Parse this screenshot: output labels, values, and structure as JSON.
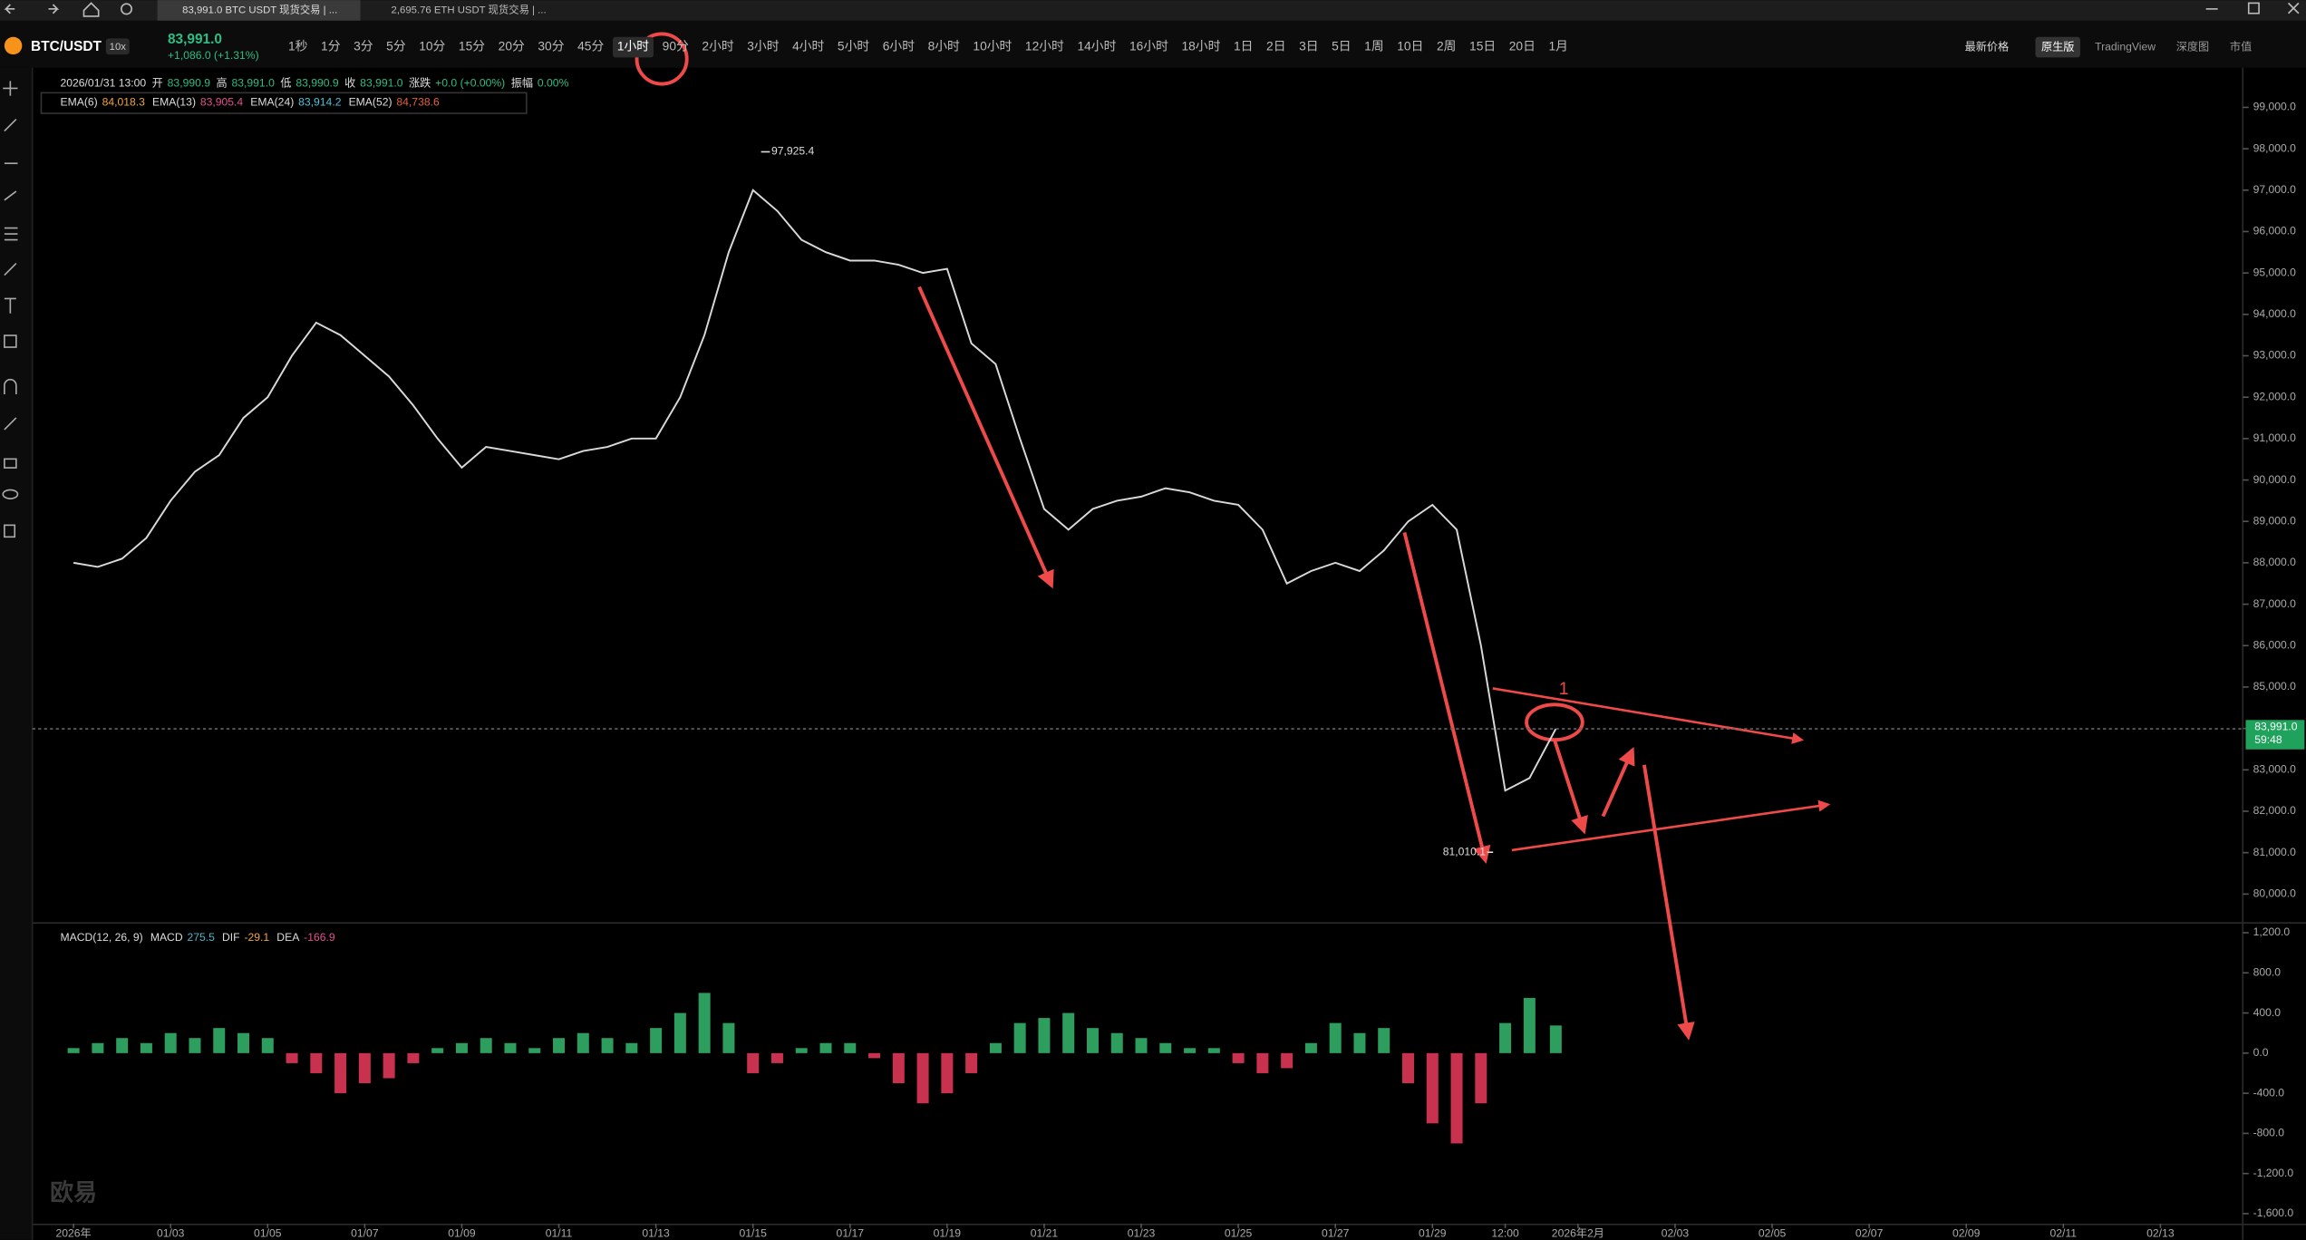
{
  "tabs": [
    "83,991.0 BTC USDT 现货交易 | ...",
    "2,695.76 ETH USDT 现货交易 | ..."
  ],
  "toolbar": {
    "symbol": "BTC/USDT",
    "leverage": "10x",
    "price": "83,991.0",
    "change": "+1,086.0 (+1.31%)",
    "intervals": [
      "1秒",
      "1分",
      "3分",
      "5分",
      "10分",
      "15分",
      "20分",
      "30分",
      "45分",
      "1小时",
      "90分",
      "2小时",
      "3小时",
      "4小时",
      "5小时",
      "6小时",
      "8小时",
      "10小时",
      "12小时",
      "14小时",
      "16小时",
      "18小时",
      "1日",
      "2日",
      "3日",
      "5日",
      "1周",
      "10日",
      "2周",
      "15日",
      "20日",
      "1月"
    ],
    "active_interval": "1小时",
    "price_mode": "最新价格",
    "views": [
      "原生版",
      "TradingView",
      "深度图",
      "市值"
    ]
  },
  "ohlc_line": {
    "time": "2026/01/31 13:00",
    "items": [
      [
        "开",
        "83,990.9"
      ],
      [
        "高",
        "83,991.0"
      ],
      [
        "低",
        "83,990.9"
      ],
      [
        "收",
        "83,991.0"
      ],
      [
        "涨跌",
        "+0.0 (+0.00%)"
      ],
      [
        "振幅",
        "0.00%"
      ]
    ]
  },
  "ema_line": [
    {
      "label": "EMA(6)",
      "value": "84,018.3",
      "color": "#f0a63a"
    },
    {
      "label": "EMA(13)",
      "value": "83,905.4",
      "color": "#e0528f"
    },
    {
      "label": "EMA(24)",
      "value": "83,914.2",
      "color": "#4fc3d9"
    },
    {
      "label": "EMA(52)",
      "value": "84,738.6",
      "color": "#e0633a"
    }
  ],
  "macd_line": {
    "label": "MACD(12, 26, 9)",
    "items": [
      {
        "label": "MACD",
        "value": "275.5",
        "color": "#4fb3c9"
      },
      {
        "label": "DIF",
        "value": "-29.1",
        "color": "#f0a63a"
      },
      {
        "label": "DEA",
        "value": "-166.9",
        "color": "#e0528f"
      }
    ]
  },
  "annotation": "1",
  "watermark": "欧易",
  "chart_data": [
    {
      "type": "line",
      "name": "price",
      "x": [
        "2026-01-01 00:00",
        "2026-01-01 12:00",
        "2026-01-02 00:00",
        "2026-01-02 12:00",
        "2026-01-03 00:00",
        "2026-01-03 12:00",
        "2026-01-04 00:00",
        "2026-01-04 12:00",
        "2026-01-05 00:00",
        "2026-01-05 12:00",
        "2026-01-06 00:00",
        "2026-01-06 12:00",
        "2026-01-07 00:00",
        "2026-01-07 12:00",
        "2026-01-08 00:00",
        "2026-01-08 12:00",
        "2026-01-09 00:00",
        "2026-01-09 12:00",
        "2026-01-10 00:00",
        "2026-01-10 12:00",
        "2026-01-11 00:00",
        "2026-01-11 12:00",
        "2026-01-12 00:00",
        "2026-01-12 12:00",
        "2026-01-13 00:00",
        "2026-01-13 12:00",
        "2026-01-14 00:00",
        "2026-01-14 12:00",
        "2026-01-15 00:00",
        "2026-01-15 12:00",
        "2026-01-16 00:00",
        "2026-01-16 12:00",
        "2026-01-17 00:00",
        "2026-01-17 12:00",
        "2026-01-18 00:00",
        "2026-01-18 12:00",
        "2026-01-19 00:00",
        "2026-01-19 12:00",
        "2026-01-20 00:00",
        "2026-01-20 12:00",
        "2026-01-21 00:00",
        "2026-01-21 12:00",
        "2026-01-22 00:00",
        "2026-01-22 12:00",
        "2026-01-23 00:00",
        "2026-01-23 12:00",
        "2026-01-24 00:00",
        "2026-01-24 12:00",
        "2026-01-25 00:00",
        "2026-01-25 12:00",
        "2026-01-26 00:00",
        "2026-01-26 12:00",
        "2026-01-27 00:00",
        "2026-01-27 12:00",
        "2026-01-28 00:00",
        "2026-01-28 12:00",
        "2026-01-29 00:00",
        "2026-01-29 12:00",
        "2026-01-30 00:00",
        "2026-01-30 12:00",
        "2026-01-31 00:00",
        "2026-01-31 13:00"
      ],
      "values": [
        88000,
        87900,
        88100,
        88600,
        89500,
        90200,
        90600,
        91500,
        92000,
        93000,
        93800,
        93500,
        93000,
        92500,
        91800,
        91000,
        90300,
        90800,
        90700,
        90600,
        90500,
        90700,
        90800,
        91000,
        91000,
        92000,
        93500,
        95500,
        97000,
        96500,
        95800,
        95500,
        95300,
        95300,
        95200,
        95000,
        95100,
        93300,
        92800,
        91000,
        89300,
        88800,
        89300,
        89500,
        89600,
        89800,
        89700,
        89500,
        89400,
        88800,
        87500,
        87800,
        88000,
        87800,
        88300,
        89000,
        89400,
        88800,
        86000,
        82500,
        82800,
        83991
      ],
      "color": "#d9d9d9",
      "xlim": [
        "2026-01-01 00:00",
        "2026-02-14 00:00"
      ],
      "ylim": [
        79320,
        99920
      ],
      "yticks": [
        {
          "value": 80000,
          "label": "80,000.0"
        },
        {
          "value": 81000,
          "label": "81,000.0"
        },
        {
          "value": 82000,
          "label": "82,000.0"
        },
        {
          "value": 83000,
          "label": "83,000.0"
        },
        {
          "value": 84000,
          "label": "84,000.0"
        },
        {
          "value": 85000,
          "label": "85,000.0"
        },
        {
          "value": 86000,
          "label": "86,000.0"
        },
        {
          "value": 87000,
          "label": "87,000.0"
        },
        {
          "value": 88000,
          "label": "88,000.0"
        },
        {
          "value": 89000,
          "label": "89,000.0"
        },
        {
          "value": 90000,
          "label": "90,000.0"
        },
        {
          "value": 91000,
          "label": "91,000.0"
        },
        {
          "value": 92000,
          "label": "92,000.0"
        },
        {
          "value": 93000,
          "label": "93,000.0"
        },
        {
          "value": 94000,
          "label": "94,000.0"
        },
        {
          "value": 95000,
          "label": "95,000.0"
        },
        {
          "value": 96000,
          "label": "96,000.0"
        },
        {
          "value": 97000,
          "label": "97,000.0"
        },
        {
          "value": 98000,
          "label": "98,000.0"
        },
        {
          "value": 99000,
          "label": "99,000.0"
        }
      ],
      "xticks": [
        {
          "value": "2026-01-01 00:00",
          "label": "2026年"
        },
        {
          "value": "2026-01-03 00:00",
          "label": "01/03"
        },
        {
          "value": "2026-01-05 00:00",
          "label": "01/05"
        },
        {
          "value": "2026-01-07 00:00",
          "label": "01/07"
        },
        {
          "value": "2026-01-09 00:00",
          "label": "01/09"
        },
        {
          "value": "2026-01-11 00:00",
          "label": "01/11"
        },
        {
          "value": "2026-01-13 00:00",
          "label": "01/13"
        },
        {
          "value": "2026-01-15 00:00",
          "label": "01/15"
        },
        {
          "value": "2026-01-17 00:00",
          "label": "01/17"
        },
        {
          "value": "2026-01-19 00:00",
          "label": "01/19"
        },
        {
          "value": "2026-01-21 00:00",
          "label": "01/21"
        },
        {
          "value": "2026-01-23 00:00",
          "label": "01/23"
        },
        {
          "value": "2026-01-25 00:00",
          "label": "01/25"
        },
        {
          "value": "2026-01-27 00:00",
          "label": "01/27"
        },
        {
          "value": "2026-01-29 00:00",
          "label": "01/29"
        },
        {
          "value": "2026-01-30 12:00",
          "label": "12:00"
        },
        {
          "value": "2026-02-01 00:00",
          "label": "2026年2月"
        },
        {
          "value": "2026-02-03 00:00",
          "label": "02/03"
        },
        {
          "value": "2026-02-05 00:00",
          "label": "02/05"
        },
        {
          "value": "2026-02-07 00:00",
          "label": "02/07"
        },
        {
          "value": "2026-02-09 00:00",
          "label": "02/09"
        },
        {
          "value": "2026-02-11 00:00",
          "label": "02/11"
        },
        {
          "value": "2026-02-13 00:00",
          "label": "02/13"
        }
      ],
      "extremes": [
        {
          "x": "2026-01-15 04:00",
          "value": 97925.4,
          "label": "97,925.4"
        },
        {
          "x": "2026-01-30 06:00",
          "value": 81010.1,
          "label": "81,010.1"
        }
      ],
      "last_price": {
        "value": 83991.0,
        "label": "83,991.0",
        "countdown": "59:48"
      }
    },
    {
      "type": "bar",
      "name": "MACD",
      "values": [
        50,
        100,
        150,
        100,
        200,
        150,
        250,
        200,
        150,
        -100,
        -200,
        -400,
        -300,
        -250,
        -100,
        50,
        100,
        150,
        100,
        50,
        150,
        200,
        150,
        100,
        250,
        400,
        600,
        300,
        -200,
        -100,
        50,
        100,
        100,
        -50,
        -300,
        -500,
        -400,
        -200,
        100,
        300,
        350,
        400,
        250,
        200,
        150,
        100,
        50,
        50,
        -100,
        -200,
        -150,
        100,
        300,
        200,
        250,
        -300,
        -700,
        -900,
        -500,
        300,
        550,
        275.5
      ],
      "up_color": "#2e9e5e",
      "down_color": "#c9324f",
      "ylim": [
        -1700,
        1290
      ],
      "yticks": [
        {
          "value": -1600,
          "label": "-1,600.0"
        },
        {
          "value": -1200,
          "label": "-1,200.0"
        },
        {
          "value": -800,
          "label": "-800.0"
        },
        {
          "value": -400,
          "label": "-400.0"
        },
        {
          "value": 0,
          "label": "0.0"
        },
        {
          "value": 400,
          "label": "400.0"
        },
        {
          "value": 800,
          "label": "800.0"
        },
        {
          "value": 1200,
          "label": "1,200.0"
        }
      ]
    }
  ]
}
